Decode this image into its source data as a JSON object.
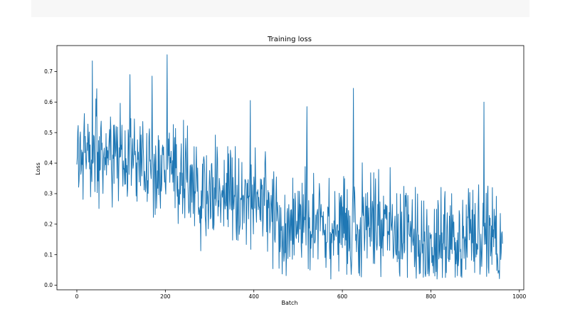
{
  "chart_data": {
    "type": "line",
    "title": "Training loss",
    "xlabel": "Batch",
    "ylabel": "Loss",
    "xlim": [
      -45,
      1010
    ],
    "ylim": [
      -0.015,
      0.785
    ],
    "xticks": [
      0,
      200,
      400,
      600,
      800,
      1000
    ],
    "yticks": [
      0.0,
      0.1,
      0.2,
      0.3,
      0.4,
      0.5,
      0.6,
      0.7
    ],
    "grid": false,
    "color": "#1f77b4",
    "series": [
      {
        "name": "",
        "n_points": 963,
        "x_start": 0,
        "x_step": 1,
        "trend": [
          [
            0,
            0.46
          ],
          [
            50,
            0.42
          ],
          [
            100,
            0.41
          ],
          [
            150,
            0.41
          ],
          [
            200,
            0.4
          ],
          [
            240,
            0.36
          ],
          [
            280,
            0.3
          ],
          [
            340,
            0.3
          ],
          [
            400,
            0.29
          ],
          [
            440,
            0.27
          ],
          [
            480,
            0.16
          ],
          [
            520,
            0.19
          ],
          [
            560,
            0.2
          ],
          [
            600,
            0.19
          ],
          [
            640,
            0.2
          ],
          [
            700,
            0.2
          ],
          [
            740,
            0.14
          ],
          [
            780,
            0.11
          ],
          [
            820,
            0.13
          ],
          [
            860,
            0.14
          ],
          [
            900,
            0.14
          ],
          [
            962,
            0.17
          ]
        ],
        "spikes": [
          [
            35,
            0.735
          ],
          [
            120,
            0.69
          ],
          [
            170,
            0.685
          ],
          [
            204,
            0.755
          ],
          [
            392,
            0.605
          ],
          [
            520,
            0.585
          ],
          [
            625,
            0.645
          ],
          [
            920,
            0.6
          ]
        ],
        "noise": 0.085,
        "min": 0.02
      }
    ]
  }
}
